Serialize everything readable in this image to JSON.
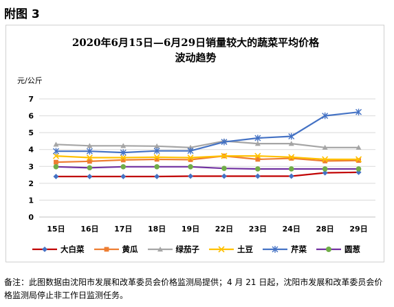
{
  "heading": "附图 3",
  "footnote": "备注：此图数据由沈阳市发展和改革委员会价格监测局提供；4 月 21 日起，沈阳市发展和改革委员会价格监测局停止非工作日监测任务。",
  "chart_data": {
    "type": "line",
    "title_line1": "2020年6月15日—6月29日销量较大的蔬菜平均价格",
    "title_line2": "波动趋势",
    "ylabel": "元/公斤",
    "xlabel": "",
    "ylim": [
      0,
      7
    ],
    "yticks": [
      "0",
      "1",
      "2",
      "3",
      "4",
      "5",
      "6",
      "7"
    ],
    "categories": [
      "15日",
      "16日",
      "17日",
      "18日",
      "19日",
      "22日",
      "23日",
      "24日",
      "28日",
      "29日"
    ],
    "grid": true,
    "legend_position": "bottom",
    "series": [
      {
        "name": "大白菜",
        "color": "#c00000",
        "marker": "diamond",
        "markerColor": "#4472c4",
        "values": [
          2.4,
          2.4,
          2.4,
          2.4,
          2.42,
          2.42,
          2.42,
          2.42,
          2.62,
          2.65
        ]
      },
      {
        "name": "黄瓜",
        "color": "#ed7d31",
        "marker": "square",
        "markerColor": "#ed7d31",
        "values": [
          3.25,
          3.3,
          3.38,
          3.42,
          3.4,
          3.62,
          3.42,
          3.48,
          3.32,
          3.35
        ]
      },
      {
        "name": "绿茄子",
        "color": "#a5a5a5",
        "marker": "triangle",
        "markerColor": "#a5a5a5",
        "values": [
          4.3,
          4.22,
          4.22,
          4.2,
          4.12,
          4.5,
          4.35,
          4.35,
          4.12,
          4.12
        ]
      },
      {
        "name": "土豆",
        "color": "#ffc000",
        "marker": "x",
        "markerColor": "#ffc000",
        "values": [
          3.62,
          3.52,
          3.52,
          3.55,
          3.52,
          3.62,
          3.62,
          3.55,
          3.42,
          3.42
        ]
      },
      {
        "name": "芹菜",
        "color": "#4472c4",
        "marker": "asterisk",
        "markerColor": "#4472c4",
        "values": [
          3.9,
          3.9,
          3.82,
          3.92,
          3.92,
          4.45,
          4.68,
          4.78,
          6.0,
          6.22
        ]
      },
      {
        "name": "圆葱",
        "color": "#7030a0",
        "marker": "circle",
        "markerColor": "#70ad47",
        "values": [
          2.98,
          2.92,
          2.98,
          2.98,
          2.98,
          2.88,
          2.85,
          2.85,
          2.85,
          2.85
        ]
      }
    ]
  }
}
